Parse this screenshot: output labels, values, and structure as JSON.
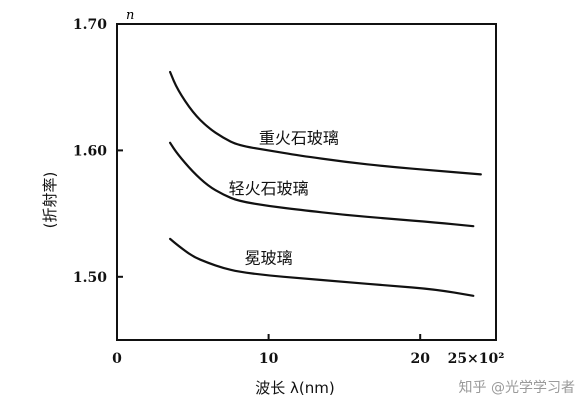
{
  "chart_data": {
    "type": "line",
    "title": "",
    "xlabel": "波长 λ(nm)",
    "ylabel": "(折射率)",
    "y_axis_symbol": "n",
    "xlim": [
      0,
      25
    ],
    "ylim": [
      1.45,
      1.7
    ],
    "x_tick_labels": [
      "0",
      "10",
      "20",
      "25×10²"
    ],
    "x_ticks": [
      0,
      10,
      20,
      25
    ],
    "y_tick_labels": [
      "1.50",
      "1.60",
      "1.70"
    ],
    "y_ticks": [
      1.5,
      1.6,
      1.7
    ],
    "grid": false,
    "series": [
      {
        "name": "重火石玻璃",
        "x": [
          3.5,
          4.0,
          5.0,
          6.0,
          7.0,
          8.0,
          10.0,
          12.0,
          15.0,
          18.0,
          21.0,
          24.0
        ],
        "y": [
          1.662,
          1.648,
          1.63,
          1.618,
          1.61,
          1.604,
          1.6,
          1.596,
          1.591,
          1.587,
          1.584,
          1.581
        ]
      },
      {
        "name": "轻火石玻璃",
        "x": [
          3.5,
          4.0,
          5.0,
          6.0,
          7.0,
          8.0,
          10.0,
          12.0,
          15.0,
          18.0,
          21.0,
          23.5
        ],
        "y": [
          1.606,
          1.597,
          1.583,
          1.572,
          1.565,
          1.56,
          1.556,
          1.553,
          1.549,
          1.546,
          1.543,
          1.54
        ]
      },
      {
        "name": "冕玻璃",
        "x": [
          3.5,
          4.0,
          5.0,
          6.0,
          7.0,
          8.0,
          10.0,
          12.0,
          15.0,
          18.0,
          21.0,
          23.5
        ],
        "y": [
          1.53,
          1.525,
          1.516,
          1.511,
          1.507,
          1.504,
          1.501,
          1.499,
          1.496,
          1.493,
          1.49,
          1.485
        ]
      }
    ]
  },
  "watermark": "知乎 @光学学习者"
}
